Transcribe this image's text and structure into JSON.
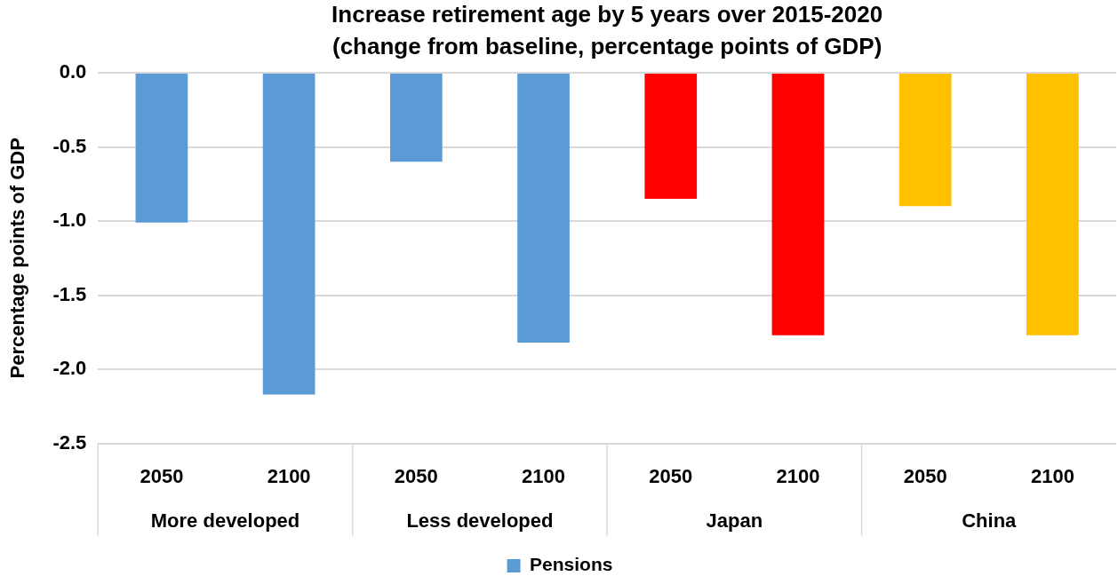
{
  "chart_data": {
    "type": "bar",
    "title": "Increase retirement age by 5 years over 2015-2020\n(change from baseline, percentage points of GDP)",
    "ylabel": "Percentage points of GDP",
    "categories": [
      "2050",
      "2100",
      "2050",
      "2100",
      "2050",
      "2100",
      "2050",
      "2100"
    ],
    "annotations": [
      "More developed",
      "Less developed",
      "Japan",
      "China"
    ],
    "series": [
      {
        "name": "Pensions",
        "color": "#5b9bd5",
        "colors": [
          "#5b9bd5",
          "#5b9bd5",
          "#5b9bd5",
          "#5b9bd5",
          "#ff0000",
          "#ff0000",
          "#ffc000",
          "#ffc000"
        ],
        "values": [
          -1.01,
          -2.17,
          -0.6,
          -1.82,
          -0.85,
          -1.77,
          -0.9,
          -1.77
        ]
      }
    ],
    "ylim": [
      -2.5,
      0
    ],
    "yticks": [
      {
        "value": -2.5,
        "label": "-2.5"
      },
      {
        "value": -2,
        "label": "-2.0"
      },
      {
        "value": -1.5,
        "label": "-1.5"
      },
      {
        "value": -1,
        "label": "-1.0"
      },
      {
        "value": -0.5,
        "label": "-0.5"
      },
      {
        "value": 0,
        "label": "0.0"
      }
    ],
    "grid": "y",
    "legend": "bottom"
  }
}
